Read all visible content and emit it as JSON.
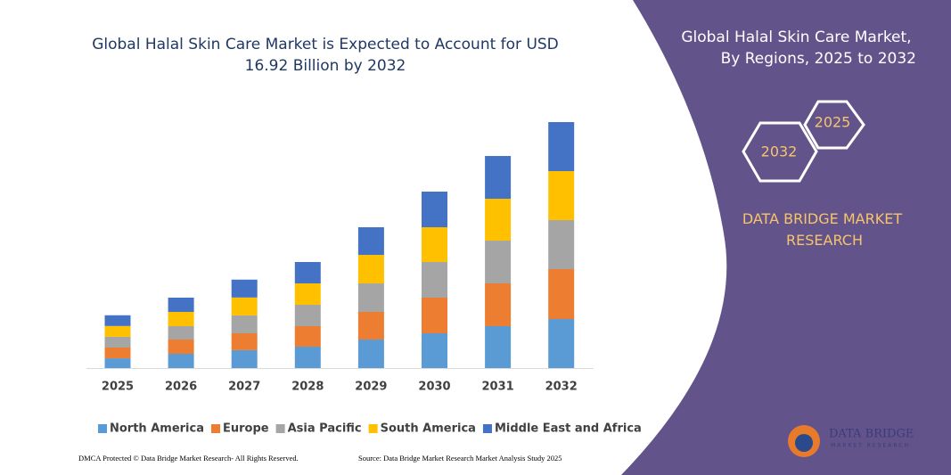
{
  "chart_data": {
    "type": "stacked-bar",
    "title": "Global Halal Skin Care Market is Expected to Account for USD 16.92 Billion by 2032",
    "categories": [
      "2025",
      "2026",
      "2027",
      "2028",
      "2029",
      "2030",
      "2031",
      "2032"
    ],
    "series": [
      {
        "name": "North America",
        "color": "#5b9bd5",
        "values": [
          0.67,
          0.98,
          1.23,
          1.47,
          1.96,
          2.39,
          2.88,
          3.37
        ]
      },
      {
        "name": "Europe",
        "color": "#ed7d31",
        "values": [
          0.74,
          0.98,
          1.16,
          1.41,
          1.9,
          2.45,
          2.94,
          3.43
        ]
      },
      {
        "name": "Asia Pacific",
        "color": "#a5a5a5",
        "values": [
          0.74,
          0.92,
          1.23,
          1.47,
          1.96,
          2.45,
          2.94,
          3.37
        ]
      },
      {
        "name": "South America",
        "color": "#ffc000",
        "values": [
          0.74,
          0.98,
          1.23,
          1.47,
          1.96,
          2.39,
          2.88,
          3.37
        ]
      },
      {
        "name": "Middle East and Africa",
        "color": "#4472c4",
        "values": [
          0.74,
          0.98,
          1.23,
          1.47,
          1.9,
          2.45,
          2.94,
          3.37
        ]
      }
    ]
  },
  "panel": {
    "title": "Global Halal Skin Care Market, By Regions, 2025 to 2032",
    "hex_back": "2025",
    "hex_front": "2032",
    "brand": "DATA BRIDGE MARKET RESEARCH"
  },
  "logo": {
    "name": "DATA BRIDGE",
    "tagline": "MARKET RESEARCH"
  },
  "footer": {
    "left": "DMCA Protected © Data Bridge Market Research- All Rights Reserved.",
    "right": "Source: Data Bridge Market Research Market Analysis Study 2025"
  }
}
